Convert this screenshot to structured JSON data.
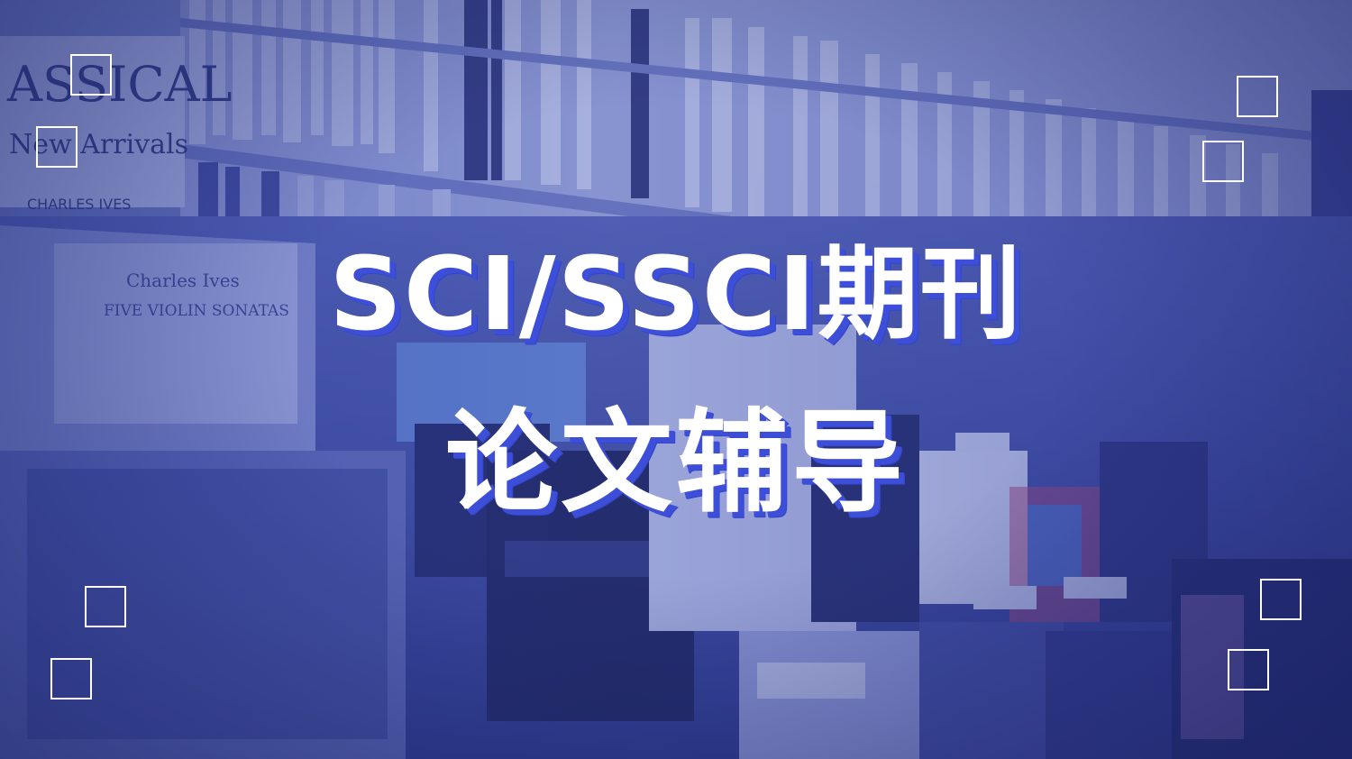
{
  "title": {
    "line1": "SCI/SSCI期刊",
    "line2": "论文辅导"
  },
  "colors": {
    "text": "#ffffff",
    "shadow": "#3d4ed8",
    "overlay": "#3446aa"
  },
  "background": {
    "description": "record store shelves with vinyl albums, blue tinted"
  }
}
